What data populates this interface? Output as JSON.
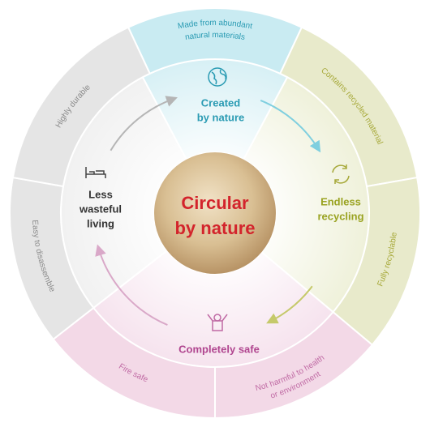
{
  "center": {
    "title": [
      "Circular",
      "by nature"
    ]
  },
  "stages": [
    {
      "label": [
        "Created",
        "by nature"
      ]
    },
    {
      "label": [
        "Endless",
        "recycling"
      ]
    },
    {
      "label": [
        "Completely safe"
      ]
    },
    {
      "label": [
        "Less",
        "wasteful",
        "living"
      ]
    }
  ],
  "properties": [
    {
      "lines": [
        "Made from abundant",
        "natural materials"
      ]
    },
    {
      "lines": [
        "Contains recycled material"
      ]
    },
    {
      "lines": [
        "Fully recyclable"
      ]
    },
    {
      "lines": [
        "Not harmful to health",
        "or environment"
      ]
    },
    {
      "lines": [
        "Fire safe"
      ]
    },
    {
      "lines": [
        "Easy to disassemble"
      ]
    },
    {
      "lines": [
        "Highly durable"
      ]
    }
  ]
}
